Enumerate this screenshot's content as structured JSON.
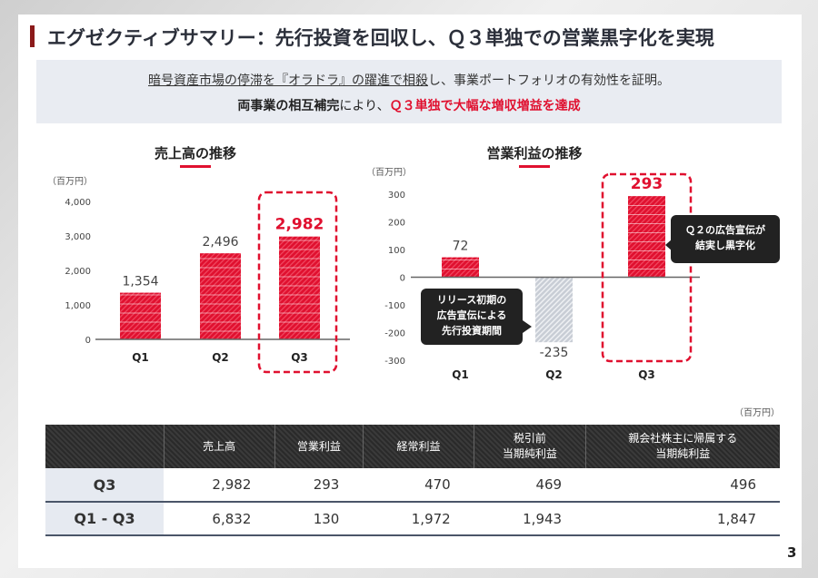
{
  "header": {
    "title": "エグゼクティブサマリー：先行投資を回収し、Ｑ３単独での営業黒字化を実現"
  },
  "summary": {
    "line1_underlined": "暗号資産市場の停滞を『オラドラ』の躍進で相殺",
    "line1_rest": "し、事業ポートフォリオの有効性を証明。",
    "line2_bold": "両事業の相互補完",
    "line2_mid": "により、",
    "line2_red": "Ｑ３単独で大幅な増収増益を達成"
  },
  "colors": {
    "accent": "#e0102f",
    "dark": "#222222",
    "negative": "#b8bec8"
  },
  "chart_data": [
    {
      "type": "bar",
      "title": "売上高の推移",
      "unit": "（百万円）",
      "categories": [
        "Q1",
        "Q2",
        "Q3"
      ],
      "values": [
        1354,
        2496,
        2982
      ],
      "value_labels": [
        "1,354",
        "2,496",
        "2,982"
      ],
      "yticks": [
        "0",
        "1,000",
        "2,000",
        "3,000",
        "4,000"
      ],
      "ylim": [
        0,
        4000
      ],
      "highlight": "Q3"
    },
    {
      "type": "bar",
      "title": "営業利益の推移",
      "unit": "（百万円）",
      "categories": [
        "Q1",
        "Q2",
        "Q3"
      ],
      "values": [
        72,
        -235,
        293
      ],
      "value_labels": [
        "72",
        "-235",
        "293"
      ],
      "yticks": [
        "-300",
        "-200",
        "-100",
        "0",
        "100",
        "200",
        "300"
      ],
      "ylim": [
        -300,
        300
      ],
      "highlight": "Q3",
      "annotations": [
        "Ｑ２の広告宣伝が\n結実し黒字化",
        "リリース初期の\n広告宣伝による\n先行投資期間"
      ]
    }
  ],
  "callouts": {
    "q3_line1": "Ｑ２の広告宣伝が",
    "q3_line2": "結実し黒字化",
    "q2_line1": "リリース初期の",
    "q2_line2": "広告宣伝による",
    "q2_line3": "先行投資期間"
  },
  "table": {
    "unit": "（百万円）",
    "headers": [
      "",
      "売上高",
      "営業利益",
      "経常利益",
      "税引前\n当期純利益",
      "親会社株主に帰属する\n当期純利益"
    ],
    "rows": [
      {
        "label": "Q3",
        "values": [
          "2,982",
          "293",
          "470",
          "469",
          "496"
        ]
      },
      {
        "label": "Q1 - Q3",
        "values": [
          "6,832",
          "130",
          "1,972",
          "1,943",
          "1,847"
        ]
      }
    ]
  },
  "page_number": "3"
}
